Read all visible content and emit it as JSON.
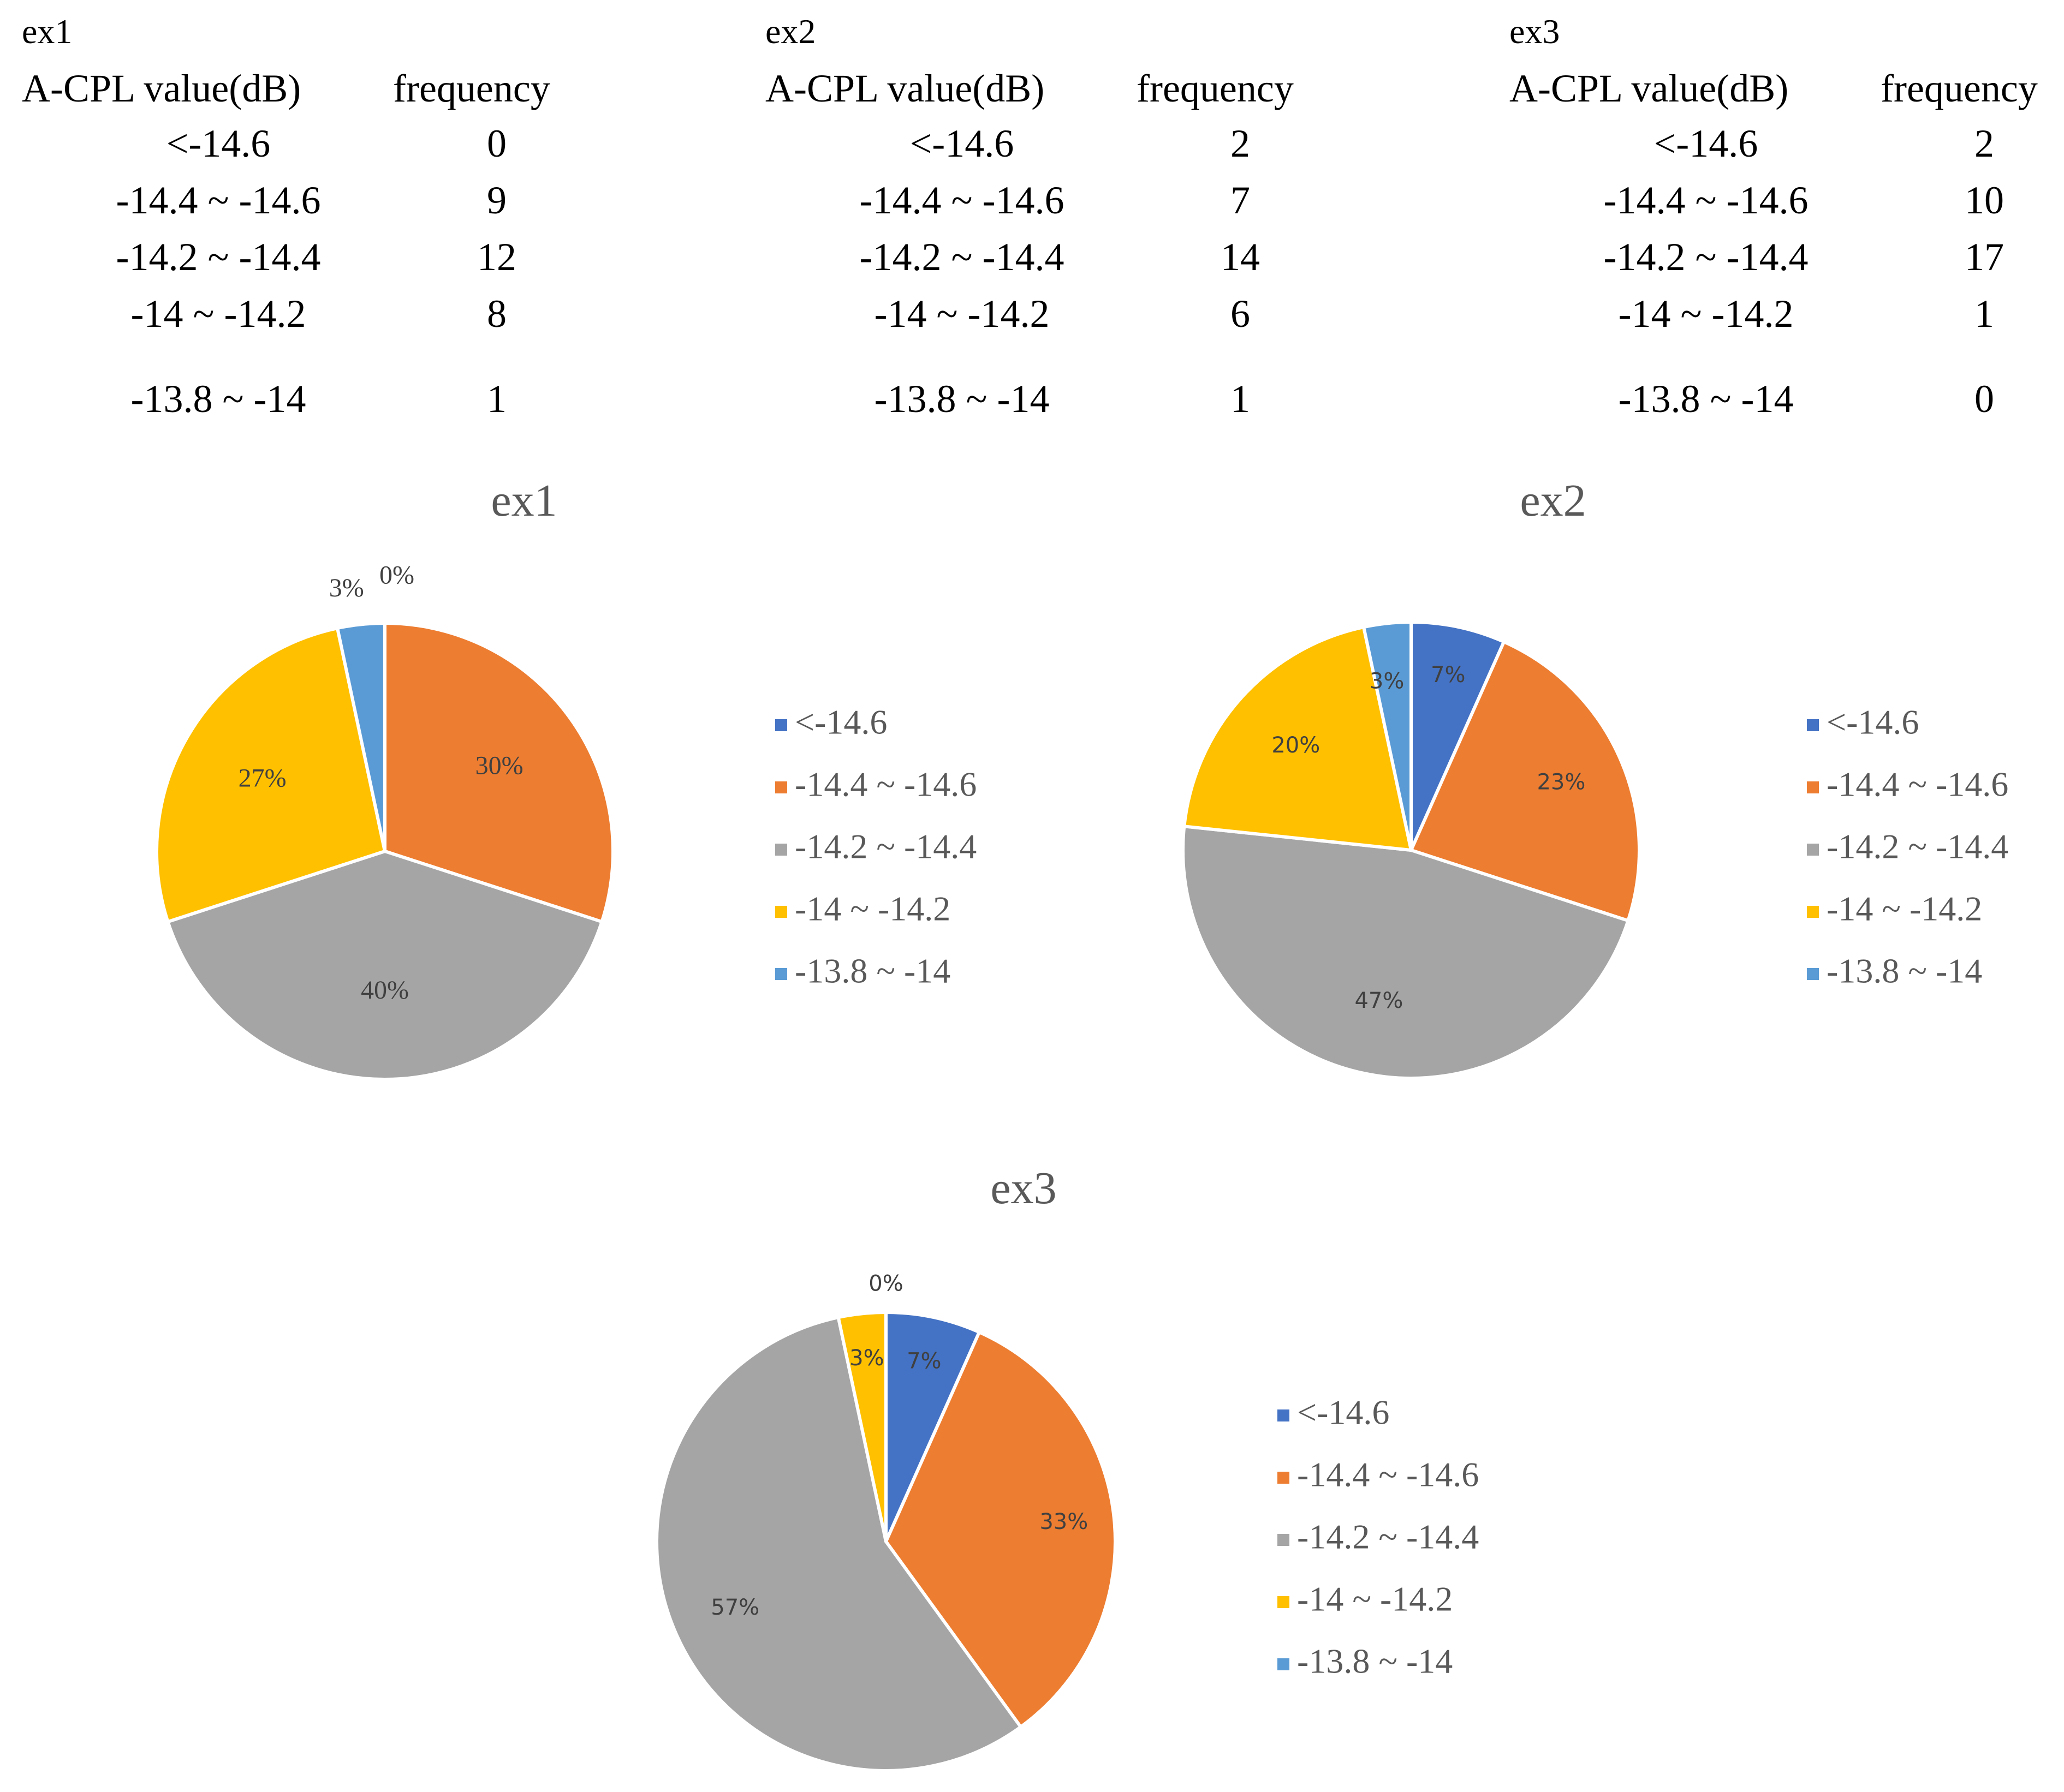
{
  "header": {
    "range_label": "A-CPL value(dB)",
    "frequency_label": "frequency"
  },
  "tables": [
    {
      "title": "ex1",
      "rows": [
        {
          "range": "<-14.6",
          "frequency": "0"
        },
        {
          "range": "-14.4 ~ -14.6",
          "frequency": "9"
        },
        {
          "range": "-14.2 ~ -14.4",
          "frequency": "12"
        },
        {
          "range": "-14 ~ -14.2",
          "frequency": "8"
        },
        {
          "range": "-13.8 ~ -14",
          "frequency": "1"
        }
      ]
    },
    {
      "title": "ex2",
      "rows": [
        {
          "range": "<-14.6",
          "frequency": "2"
        },
        {
          "range": "-14.4 ~ -14.6",
          "frequency": "7"
        },
        {
          "range": "-14.2 ~ -14.4",
          "frequency": "14"
        },
        {
          "range": "-14 ~ -14.2",
          "frequency": "6"
        },
        {
          "range": "-13.8 ~ -14",
          "frequency": "1"
        }
      ]
    },
    {
      "title": "ex3",
      "rows": [
        {
          "range": "<-14.6",
          "frequency": "2"
        },
        {
          "range": "-14.4 ~ -14.6",
          "frequency": "10"
        },
        {
          "range": "-14.2 ~ -14.4",
          "frequency": "17"
        },
        {
          "range": "-14 ~ -14.2",
          "frequency": "1"
        },
        {
          "range": "-13.8 ~ -14",
          "frequency": "0"
        }
      ]
    }
  ],
  "chart_data": [
    {
      "type": "pie",
      "title": "ex1",
      "categories": [
        "<-14.6",
        "-14.4 ~ -14.6",
        "-14.2 ~ -14.4",
        "-14 ~ -14.2",
        "-13.8 ~ -14"
      ],
      "values": [
        0,
        9,
        12,
        8,
        1
      ],
      "labels": [
        "0%",
        "30%",
        "40%",
        "27%",
        "3%"
      ],
      "colors": [
        "#4472C4",
        "#ED7D31",
        "#A5A5A5",
        "#FFC000",
        "#5B9BD5"
      ],
      "legend": "right"
    },
    {
      "type": "pie",
      "title": "ex2",
      "categories": [
        "<-14.6",
        "-14.4 ~ -14.6",
        "-14.2 ~ -14.4",
        "-14 ~ -14.2",
        "-13.8 ~ -14"
      ],
      "values": [
        2,
        7,
        14,
        6,
        1
      ],
      "labels": [
        "7%",
        "23%",
        "47%",
        "20%",
        "3%"
      ],
      "colors": [
        "#4472C4",
        "#ED7D31",
        "#A5A5A5",
        "#FFC000",
        "#5B9BD5"
      ],
      "legend": "right"
    },
    {
      "type": "pie",
      "title": "ex3",
      "categories": [
        "<-14.6",
        "-14.4 ~ -14.6",
        "-14.2 ~ -14.4",
        "-14 ~ -14.2",
        "-13.8 ~ -14"
      ],
      "values": [
        2,
        10,
        17,
        1,
        0
      ],
      "labels": [
        "7%",
        "33%",
        "57%",
        "3%",
        "0%"
      ],
      "colors": [
        "#4472C4",
        "#ED7D31",
        "#A5A5A5",
        "#FFC000",
        "#5B9BD5"
      ],
      "legend": "right"
    }
  ]
}
